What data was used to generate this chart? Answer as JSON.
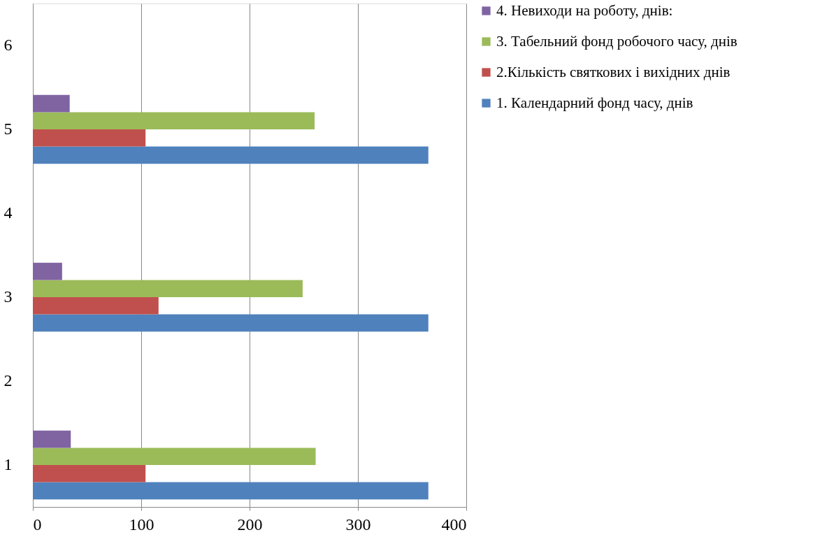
{
  "chart_data": {
    "type": "bar",
    "orientation": "horizontal",
    "categories": [
      "6",
      "5",
      "4",
      "3",
      "2",
      "1"
    ],
    "series": [
      {
        "name": "1. Календарний фонд часу, днів",
        "color": "#4f81bd",
        "values": [
          null,
          365,
          null,
          365,
          null,
          365
        ]
      },
      {
        "name": "2.Кількість святкових і вихідних днів",
        "color": "#c0504d",
        "values": [
          null,
          104,
          null,
          116,
          null,
          104
        ]
      },
      {
        "name": "3. Табельний фонд робочого часу, днів",
        "color": "#9bbb59",
        "values": [
          null,
          260,
          null,
          249,
          null,
          261
        ]
      },
      {
        "name": "4. Невиходи на роботу, днів:",
        "color": "#8064a2",
        "values": [
          null,
          34,
          null,
          27,
          null,
          35
        ]
      }
    ],
    "xlim": [
      0,
      400
    ],
    "xticks": [
      0,
      100,
      200,
      300,
      400
    ],
    "grid": "x",
    "legend": "right"
  }
}
